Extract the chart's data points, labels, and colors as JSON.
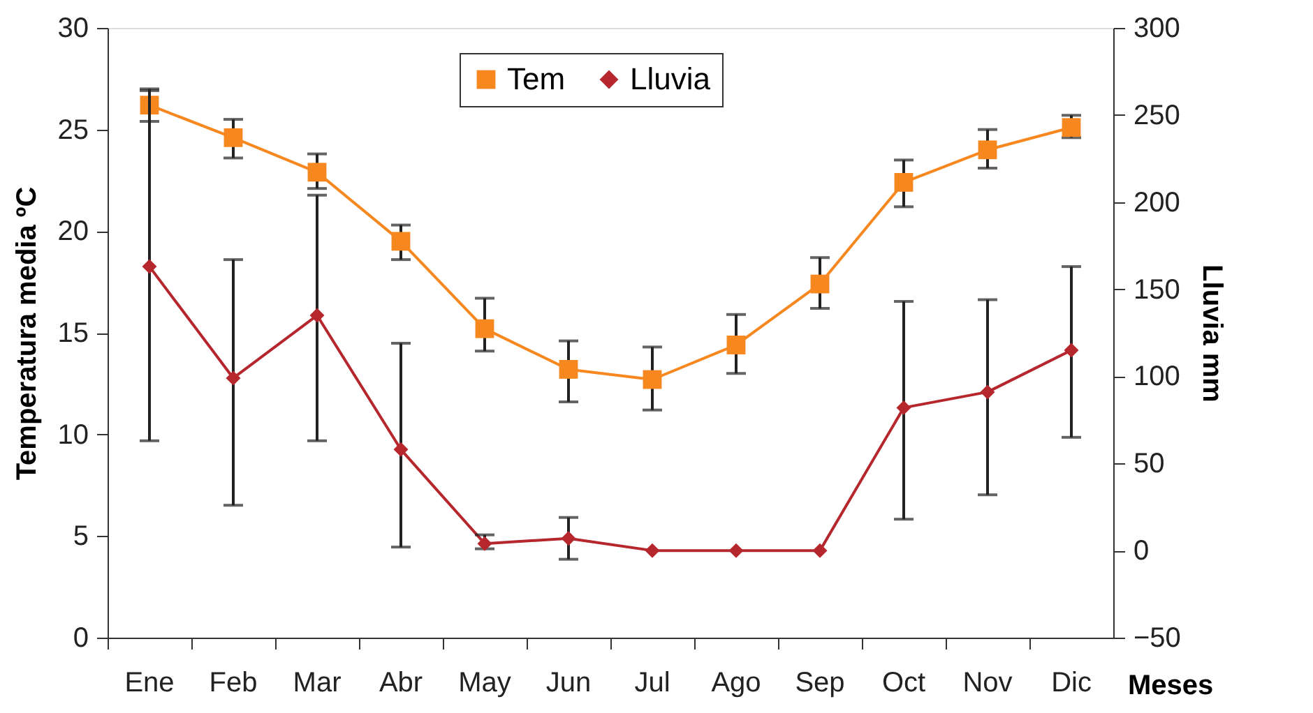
{
  "chart_data": {
    "type": "line",
    "categories": [
      "Ene",
      "Feb",
      "Mar",
      "Abr",
      "May",
      "Jun",
      "Jul",
      "Ago",
      "Sep",
      "Oct",
      "Nov",
      "Dic"
    ],
    "xlabel": "Meses",
    "ylabel": "Temperatura media ºC",
    "y2label": "Lluvia mm",
    "ylim": [
      0,
      30
    ],
    "yticks": [
      0,
      5,
      10,
      15,
      20,
      25,
      30
    ],
    "y2lim": [
      -50,
      300
    ],
    "y2ticks": [
      -50,
      0,
      50,
      100,
      150,
      200,
      250,
      300
    ],
    "legend": "top",
    "grid": false,
    "series": [
      {
        "name": "Tem",
        "color": "#f7871f",
        "marker": "square",
        "values": [
          26.2,
          24.6,
          22.9,
          19.5,
          15.2,
          13.2,
          12.7,
          14.4,
          17.4,
          22.4,
          24.0,
          25.1
        ],
        "errors": [
          [
            25.4,
            27.0
          ],
          [
            23.6,
            25.5
          ],
          [
            22.1,
            23.8
          ],
          [
            18.6,
            20.3
          ],
          [
            14.1,
            16.7
          ],
          [
            11.6,
            14.6
          ],
          [
            11.2,
            14.3
          ],
          [
            13.0,
            15.9
          ],
          [
            16.2,
            18.7
          ],
          [
            21.2,
            23.5
          ],
          [
            23.1,
            25.0
          ],
          [
            24.6,
            25.7
          ]
        ]
      },
      {
        "name": "Lluvia",
        "color": "#b5272d",
        "marker": "diamond",
        "axis": "y2",
        "values": [
          163,
          99,
          135,
          58,
          4,
          7,
          0,
          0,
          0,
          82,
          91,
          115
        ],
        "errors": [
          [
            63,
            264
          ],
          [
            26,
            167
          ],
          [
            63,
            204
          ],
          [
            2,
            119
          ],
          [
            1,
            9
          ],
          [
            -5,
            19
          ],
          null,
          null,
          null,
          [
            18,
            143
          ],
          [
            32,
            144
          ],
          [
            65,
            163
          ]
        ]
      }
    ]
  }
}
